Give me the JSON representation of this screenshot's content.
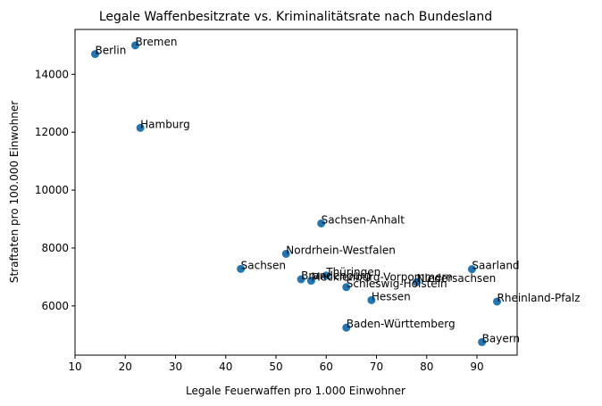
{
  "chart_data": {
    "type": "scatter",
    "title": "Legale Waffenbesitzrate vs. Kriminalitätsrate nach Bundesland",
    "xlabel": "Legale Feuerwaffen pro 1.000 Einwohner",
    "ylabel": "Straftaten pro 100.000 Einwohner",
    "xlim": [
      10,
      98
    ],
    "ylim": [
      4300,
      15550
    ],
    "xticks": [
      10,
      20,
      30,
      40,
      50,
      60,
      70,
      80,
      90
    ],
    "yticks": [
      6000,
      8000,
      10000,
      12000,
      14000
    ],
    "marker_color": "#1f77b4",
    "points": [
      {
        "label": "Berlin",
        "x": 14,
        "y": 14700
      },
      {
        "label": "Bremen",
        "x": 22,
        "y": 15000
      },
      {
        "label": "Hamburg",
        "x": 23,
        "y": 12150
      },
      {
        "label": "Sachsen-Anhalt",
        "x": 59,
        "y": 8850
      },
      {
        "label": "Nordrhein-Westfalen",
        "x": 52,
        "y": 7800
      },
      {
        "label": "Sachsen",
        "x": 43,
        "y": 7280
      },
      {
        "label": "Brandenburg",
        "x": 55,
        "y": 6920
      },
      {
        "label": "Mecklenburg-Vorpommern",
        "x": 57,
        "y": 6870
      },
      {
        "label": "Thüringen",
        "x": 60,
        "y": 7050
      },
      {
        "label": "Schleswig-Holstein",
        "x": 64,
        "y": 6650
      },
      {
        "label": "Niedersachsen",
        "x": 78,
        "y": 6820
      },
      {
        "label": "Saarland",
        "x": 89,
        "y": 7270
      },
      {
        "label": "Hessen",
        "x": 69,
        "y": 6200
      },
      {
        "label": "Rheinland-Pfalz",
        "x": 94,
        "y": 6150
      },
      {
        "label": "Baden-Württemberg",
        "x": 64,
        "y": 5250
      },
      {
        "label": "Bayern",
        "x": 91,
        "y": 4750
      }
    ]
  }
}
